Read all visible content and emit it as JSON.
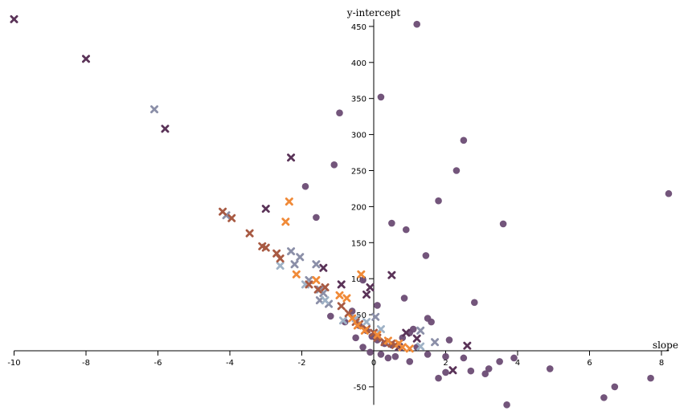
{
  "chart_data": {
    "type": "scatter",
    "title": "",
    "xlabel": "slope",
    "ylabel": "y-intercept",
    "xlim": [
      -10,
      8.2
    ],
    "ylim": [
      -75,
      460
    ],
    "x_ticks": [
      -10,
      -8,
      -6,
      -4,
      -2,
      0,
      2,
      4,
      6,
      8
    ],
    "y_ticks": [
      -50,
      50,
      100,
      150,
      200,
      250,
      300,
      350,
      400,
      450
    ],
    "legend": "none",
    "series": [
      {
        "name": "circles",
        "marker": "circle",
        "color": "#6b4c74",
        "points": [
          [
            1.2,
            453
          ],
          [
            0.2,
            352
          ],
          [
            -0.95,
            330
          ],
          [
            2.5,
            292
          ],
          [
            -1.1,
            258
          ],
          [
            2.3,
            250
          ],
          [
            -1.9,
            228
          ],
          [
            1.8,
            208
          ],
          [
            8.2,
            218
          ],
          [
            -1.6,
            185
          ],
          [
            0.5,
            177
          ],
          [
            3.6,
            176
          ],
          [
            0.9,
            168
          ],
          [
            1.45,
            132
          ],
          [
            -0.3,
            98
          ],
          [
            0.1,
            63
          ],
          [
            0.85,
            73
          ],
          [
            2.8,
            67
          ],
          [
            1.5,
            45
          ],
          [
            1.6,
            40
          ],
          [
            -0.6,
            55
          ],
          [
            -0.8,
            40
          ],
          [
            -0.4,
            35
          ],
          [
            -0.2,
            28
          ],
          [
            -0.05,
            20
          ],
          [
            0.1,
            15
          ],
          [
            0.3,
            10
          ],
          [
            0.5,
            8
          ],
          [
            1.0,
            25
          ],
          [
            1.1,
            30
          ],
          [
            0.8,
            18
          ],
          [
            2.1,
            15
          ],
          [
            1.2,
            5
          ],
          [
            1.5,
            -5
          ],
          [
            2.0,
            -8
          ],
          [
            2.5,
            -10
          ],
          [
            3.2,
            -25
          ],
          [
            3.5,
            -15
          ],
          [
            3.9,
            -10
          ],
          [
            3.1,
            -32
          ],
          [
            2.7,
            -28
          ],
          [
            2.0,
            -30
          ],
          [
            1.8,
            -38
          ],
          [
            6.4,
            -65
          ],
          [
            6.7,
            -50
          ],
          [
            7.7,
            -38
          ],
          [
            3.7,
            -75
          ],
          [
            4.9,
            -25
          ],
          [
            1.0,
            -15
          ],
          [
            0.6,
            -8
          ],
          [
            -0.3,
            5
          ],
          [
            -0.5,
            18
          ],
          [
            -1.2,
            48
          ],
          [
            -0.1,
            -2
          ],
          [
            0.2,
            -5
          ],
          [
            0.4,
            -10
          ]
        ]
      },
      {
        "name": "dark-plum-x",
        "marker": "x",
        "color": "#5a3358",
        "points": [
          [
            -10.0,
            460
          ],
          [
            -8.0,
            405
          ],
          [
            -5.8,
            308
          ],
          [
            -2.3,
            268
          ],
          [
            -3.0,
            197
          ],
          [
            -1.4,
            115
          ],
          [
            0.5,
            105
          ],
          [
            -0.9,
            92
          ],
          [
            -0.1,
            88
          ],
          [
            -0.2,
            78
          ],
          [
            2.6,
            7
          ],
          [
            2.2,
            -27
          ],
          [
            1.2,
            17
          ],
          [
            0.9,
            25
          ],
          [
            0.7,
            5
          ]
        ]
      },
      {
        "name": "slate-x",
        "marker": "x",
        "color": "#8b8fa8",
        "points": [
          [
            -6.1,
            335
          ],
          [
            -4.1,
            188
          ],
          [
            -2.3,
            138
          ],
          [
            -2.05,
            130
          ],
          [
            -2.2,
            120
          ],
          [
            -1.6,
            120
          ],
          [
            -1.8,
            98
          ],
          [
            -1.5,
            85
          ],
          [
            -1.4,
            80
          ],
          [
            -1.5,
            70
          ],
          [
            -1.25,
            65
          ],
          [
            0.05,
            47
          ],
          [
            1.3,
            28
          ],
          [
            1.7,
            12
          ]
        ]
      },
      {
        "name": "light-blue-x",
        "marker": "x",
        "color": "#9fb2c6",
        "points": [
          [
            -2.6,
            118
          ],
          [
            -1.9,
            92
          ],
          [
            -1.35,
            70
          ],
          [
            -0.85,
            42
          ],
          [
            -0.5,
            45
          ],
          [
            -0.2,
            40
          ],
          [
            0.2,
            30
          ],
          [
            1.3,
            6
          ]
        ]
      },
      {
        "name": "rust-x",
        "marker": "x",
        "color": "#a85a43",
        "points": [
          [
            -4.2,
            193
          ],
          [
            -3.95,
            184
          ],
          [
            -3.45,
            163
          ],
          [
            -3.1,
            145
          ],
          [
            -3.0,
            143
          ],
          [
            -2.7,
            135
          ],
          [
            -2.6,
            128
          ],
          [
            -1.8,
            92
          ],
          [
            -1.55,
            85
          ],
          [
            -1.35,
            88
          ],
          [
            -0.9,
            62
          ],
          [
            -0.7,
            52
          ],
          [
            -0.5,
            40
          ],
          [
            -0.4,
            37
          ],
          [
            -0.2,
            30
          ],
          [
            0.0,
            25
          ],
          [
            0.1,
            18
          ],
          [
            0.3,
            12
          ],
          [
            0.5,
            10
          ],
          [
            0.6,
            8
          ]
        ]
      },
      {
        "name": "orange-x",
        "marker": "x",
        "color": "#f08a38",
        "points": [
          [
            -2.35,
            207
          ],
          [
            -2.45,
            179
          ],
          [
            -2.15,
            106
          ],
          [
            -1.6,
            98
          ],
          [
            -0.35,
            106
          ],
          [
            -0.95,
            77
          ],
          [
            -0.75,
            73
          ],
          [
            -0.6,
            45
          ],
          [
            -0.45,
            35
          ],
          [
            -0.25,
            28
          ],
          [
            0.1,
            22
          ],
          [
            0.4,
            14
          ],
          [
            0.7,
            10
          ],
          [
            0.8,
            5
          ],
          [
            1.0,
            3
          ]
        ]
      }
    ]
  }
}
